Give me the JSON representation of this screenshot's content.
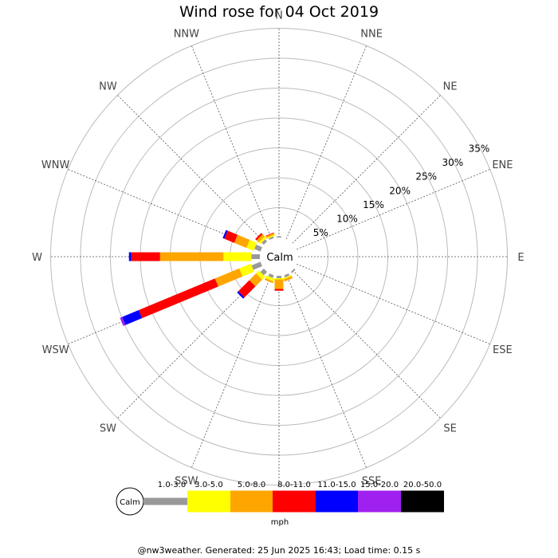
{
  "title": "Wind rose for 04 Oct 2019",
  "footer": "@nw3weather. Generated: 25 Jun 2025 16:43; Load time: 0.15 s",
  "chart_data": {
    "type": "wind-rose",
    "title": "Wind rose for 04 Oct 2019",
    "directions": [
      "N",
      "NNE",
      "NE",
      "ENE",
      "E",
      "ESE",
      "SE",
      "SSE",
      "S",
      "SSW",
      "SW",
      "WSW",
      "W",
      "WNW",
      "NW",
      "NNW"
    ],
    "rings_percent": [
      5,
      10,
      15,
      20,
      25,
      30,
      35
    ],
    "ring_labels": [
      "5%",
      "10%",
      "15%",
      "20%",
      "25%",
      "30%",
      "35%"
    ],
    "calm_label": "Calm",
    "unit": "mph",
    "speed_bins": [
      {
        "label": "1.0-3.0",
        "color": "#999999"
      },
      {
        "label": "3.0-5.0",
        "color": "#ffff00"
      },
      {
        "label": "5.0-8.0",
        "color": "#ffa500"
      },
      {
        "label": "8.0-11.0",
        "color": "#ff0000"
      },
      {
        "label": "11.0-15.0",
        "color": "#0000ff"
      },
      {
        "label": "15.0-20.0",
        "color": "#a020f0"
      },
      {
        "label": "20.0-50.0",
        "color": "#000000"
      }
    ],
    "frequencies_percent": {
      "N": [
        0.2,
        0,
        0,
        0,
        0,
        0,
        0
      ],
      "NNE": [
        0,
        0,
        0,
        0,
        0,
        0,
        0
      ],
      "NE": [
        0,
        0,
        0,
        0,
        0,
        0,
        0
      ],
      "ENE": [
        0,
        0,
        0,
        0,
        0,
        0,
        0
      ],
      "E": [
        0,
        0,
        0,
        0,
        0,
        0,
        0
      ],
      "ESE": [
        0,
        0,
        0,
        0,
        0,
        0,
        0
      ],
      "SE": [
        0.3,
        0,
        0,
        0,
        0,
        0,
        0
      ],
      "SSE": [
        0.4,
        0.2,
        0.4,
        0,
        0,
        0,
        0
      ],
      "S": [
        0.4,
        0.2,
        1.6,
        0.3,
        0,
        0,
        0
      ],
      "SSW": [
        0.5,
        0.5,
        0.3,
        0,
        0,
        0,
        0
      ],
      "SW": [
        0.8,
        0.7,
        1.6,
        2.6,
        0.3,
        0,
        0
      ],
      "WSW": [
        1.6,
        2.1,
        4.4,
        13.8,
        3.0,
        0.4,
        0
      ],
      "W": [
        1.4,
        4.7,
        10.6,
        4.8,
        0.4,
        0,
        0
      ],
      "WNW": [
        1.1,
        1.3,
        2.2,
        1.8,
        0.3,
        0,
        0
      ],
      "NW": [
        0.5,
        0.4,
        0.5,
        0.3,
        0,
        0,
        0
      ],
      "NNW": [
        0.3,
        0.2,
        0.3,
        0.1,
        0,
        0,
        0
      ]
    }
  }
}
